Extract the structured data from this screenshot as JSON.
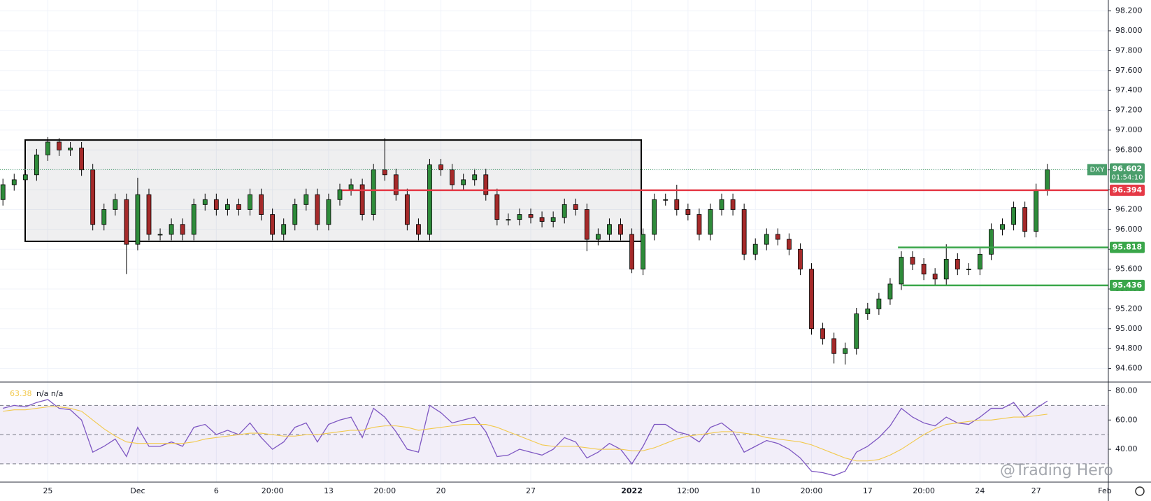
{
  "chart_data": [
    {
      "type": "candlestick",
      "symbol": "DXY",
      "categories": [
        null,
        null,
        null,
        null,
        "25",
        null,
        null,
        null,
        null,
        null,
        null,
        null,
        "Dec",
        null,
        null,
        null,
        null,
        null,
        null,
        "6",
        null,
        null,
        null,
        null,
        "20:00",
        null,
        null,
        null,
        null,
        "13",
        null,
        null,
        null,
        null,
        "20:00",
        null,
        null,
        null,
        null,
        "20",
        null,
        null,
        null,
        null,
        null,
        null,
        null,
        "27",
        null,
        null,
        null,
        null,
        null,
        null,
        null,
        null,
        "2022",
        null,
        null,
        null,
        null,
        "12:00",
        null,
        null,
        null,
        null,
        null,
        "10",
        null,
        null,
        null,
        null,
        "20:00",
        null,
        null,
        null,
        null,
        "17",
        null,
        null,
        null,
        null,
        "20:00",
        null,
        null,
        null,
        null,
        "24",
        null,
        null,
        null,
        null,
        "27",
        null
      ],
      "x_end_label": "Feb",
      "open": [
        96.3,
        96.45,
        96.5,
        96.55,
        96.75,
        96.88,
        96.8,
        96.82,
        96.6,
        96.05,
        96.2,
        96.3,
        95.85,
        96.35,
        95.95,
        95.95,
        96.05,
        95.95,
        96.25,
        96.3,
        96.2,
        96.25,
        96.2,
        96.35,
        96.15,
        95.95,
        96.05,
        96.25,
        96.35,
        96.05,
        96.3,
        96.4,
        96.45,
        96.15,
        96.6,
        96.55,
        96.35,
        96.05,
        95.95,
        96.65,
        96.6,
        96.45,
        96.5,
        96.55,
        96.35,
        96.1,
        96.1,
        96.15,
        96.12,
        96.08,
        96.12,
        96.25,
        96.2,
        95.9,
        95.95,
        96.05,
        95.95,
        95.6,
        95.95,
        96.3,
        96.3,
        96.2,
        96.15,
        95.95,
        96.2,
        96.3,
        96.2,
        95.75,
        95.85,
        95.95,
        95.9,
        95.8,
        95.6,
        95.0,
        94.9,
        94.75,
        94.8,
        95.15,
        95.2,
        95.3,
        95.45,
        95.72,
        95.65,
        95.55,
        95.5,
        95.7,
        95.6,
        95.6,
        95.75,
        96.0,
        96.05,
        96.22,
        95.98,
        96.4
      ],
      "high": [
        96.51,
        96.56,
        96.61,
        96.81,
        96.93,
        96.92,
        96.88,
        96.88,
        96.66,
        96.26,
        96.36,
        96.36,
        96.52,
        96.41,
        96.01,
        96.11,
        96.11,
        96.31,
        96.36,
        96.36,
        96.31,
        96.31,
        96.41,
        96.41,
        96.21,
        96.11,
        96.31,
        96.41,
        96.41,
        96.36,
        96.46,
        96.51,
        96.51,
        96.66,
        96.92,
        96.61,
        96.41,
        96.11,
        96.71,
        96.71,
        96.66,
        96.56,
        96.61,
        96.61,
        96.41,
        96.16,
        96.21,
        96.21,
        96.18,
        96.18,
        96.31,
        96.31,
        96.26,
        96.01,
        96.11,
        96.11,
        96.01,
        96.01,
        96.36,
        96.36,
        96.45,
        96.26,
        96.21,
        96.26,
        96.36,
        96.36,
        96.26,
        95.91,
        96.01,
        96.01,
        95.96,
        95.86,
        95.66,
        95.06,
        94.96,
        94.86,
        95.21,
        95.26,
        95.36,
        95.51,
        95.78,
        95.78,
        95.71,
        95.61,
        95.85,
        95.76,
        95.66,
        95.81,
        96.06,
        96.11,
        96.28,
        96.28,
        96.46,
        96.66
      ],
      "low": [
        96.24,
        96.39,
        96.44,
        96.49,
        96.69,
        96.74,
        96.74,
        96.54,
        95.99,
        95.99,
        96.14,
        95.55,
        95.79,
        95.89,
        95.89,
        95.89,
        95.89,
        95.89,
        96.19,
        96.14,
        96.14,
        96.14,
        96.14,
        96.09,
        95.89,
        95.89,
        95.99,
        96.19,
        95.99,
        95.99,
        96.24,
        96.34,
        96.09,
        96.09,
        96.49,
        96.29,
        95.99,
        95.89,
        95.89,
        96.54,
        96.39,
        96.39,
        96.44,
        96.29,
        96.04,
        96.04,
        96.04,
        96.06,
        96.02,
        96.02,
        96.06,
        96.14,
        95.78,
        95.84,
        95.89,
        95.89,
        95.56,
        95.54,
        95.89,
        96.24,
        96.14,
        96.09,
        95.89,
        95.89,
        96.14,
        96.14,
        95.69,
        95.69,
        95.79,
        95.84,
        95.74,
        95.54,
        94.94,
        94.84,
        94.65,
        94.64,
        94.74,
        95.09,
        95.14,
        95.24,
        95.39,
        95.59,
        95.49,
        95.44,
        95.44,
        95.54,
        95.54,
        95.54,
        95.69,
        95.94,
        95.99,
        95.92,
        95.92,
        96.34
      ],
      "close": [
        96.45,
        96.5,
        96.55,
        96.75,
        96.88,
        96.8,
        96.82,
        96.6,
        96.05,
        96.2,
        96.3,
        95.85,
        96.35,
        95.95,
        95.95,
        96.05,
        95.95,
        96.25,
        96.3,
        96.2,
        96.25,
        96.2,
        96.35,
        96.15,
        95.95,
        96.05,
        96.25,
        96.35,
        96.05,
        96.3,
        96.4,
        96.45,
        96.15,
        96.6,
        96.55,
        96.35,
        96.05,
        95.95,
        96.65,
        96.6,
        96.45,
        96.5,
        96.55,
        96.35,
        96.1,
        96.1,
        96.15,
        96.12,
        96.08,
        96.12,
        96.25,
        96.2,
        95.9,
        95.95,
        96.05,
        95.95,
        95.6,
        95.95,
        96.3,
        96.3,
        96.2,
        96.15,
        95.95,
        96.2,
        96.3,
        96.2,
        95.75,
        95.85,
        95.95,
        95.9,
        95.8,
        95.6,
        95.0,
        94.9,
        94.75,
        94.8,
        95.15,
        95.2,
        95.3,
        95.45,
        95.72,
        95.65,
        95.55,
        95.5,
        95.7,
        95.6,
        95.6,
        95.75,
        96.0,
        96.05,
        96.22,
        95.98,
        96.4,
        96.6
      ],
      "up_color": "#2e8b3a",
      "down_color": "#a52a2a",
      "ylim": [
        94.47,
        98.31
      ],
      "yticks": [
        {
          "value": 94.6,
          "label": "94.600"
        },
        {
          "value": 94.8,
          "label": "94.800"
        },
        {
          "value": 95.0,
          "label": "95.000"
        },
        {
          "value": 95.2,
          "label": "95.200"
        },
        {
          "value": 95.4,
          "label": "95.400"
        },
        {
          "value": 95.6,
          "label": "95.600"
        },
        {
          "value": 95.8,
          "label": "95.800"
        },
        {
          "value": 96.0,
          "label": "96.000"
        },
        {
          "value": 96.2,
          "label": "96.200"
        },
        {
          "value": 96.4,
          "label": "96.400"
        },
        {
          "value": 96.6,
          "label": "96.600"
        },
        {
          "value": 96.8,
          "label": "96.800"
        },
        {
          "value": 97.0,
          "label": "97.000"
        },
        {
          "value": 97.2,
          "label": "97.200"
        },
        {
          "value": 97.4,
          "label": "97.400"
        },
        {
          "value": 97.6,
          "label": "97.600"
        },
        {
          "value": 97.8,
          "label": "97.800"
        },
        {
          "value": 98.0,
          "label": "98.000"
        },
        {
          "value": 98.2,
          "label": "98.200"
        }
      ],
      "grid": true,
      "last_price": {
        "value": 96.602,
        "label": "96.602",
        "countdown": "01:54:10",
        "color": "#4a9e6b"
      },
      "levels": [
        {
          "value": 96.394,
          "label": "96.394",
          "color": "#e53946"
        },
        {
          "value": 95.818,
          "label": "95.818",
          "color": "#3aa64a"
        },
        {
          "value": 95.436,
          "label": "95.436",
          "color": "#3aa64a"
        }
      ],
      "box": {
        "top": 96.9,
        "bottom": 95.88
      },
      "watermark": "@Trading Hero"
    },
    {
      "type": "line",
      "series": [
        {
          "color": "#7e57c2",
          "values": [
            68,
            70,
            69,
            72,
            74,
            68,
            67,
            60,
            38,
            42,
            47,
            35,
            55,
            42,
            42,
            45,
            42,
            55,
            57,
            50,
            53,
            50,
            58,
            48,
            40,
            45,
            55,
            58,
            45,
            57,
            60,
            62,
            48,
            68,
            62,
            52,
            40,
            38,
            70,
            65,
            58,
            60,
            62,
            52,
            35,
            36,
            40,
            38,
            36,
            40,
            48,
            45,
            34,
            38,
            44,
            40,
            30,
            42,
            57,
            57,
            52,
            50,
            45,
            55,
            58,
            52,
            38,
            42,
            46,
            44,
            40,
            34,
            25,
            24,
            22,
            25,
            38,
            42,
            48,
            56,
            68,
            62,
            58,
            56,
            62,
            58,
            57,
            62,
            68,
            68,
            72,
            62,
            68,
            73
          ]
        },
        {
          "color": "#f2c94c",
          "value_label": "63.38",
          "values": [
            66,
            67,
            67,
            68,
            69,
            69,
            68,
            66,
            60,
            54,
            49,
            45,
            44,
            44,
            44,
            44,
            44,
            45,
            47,
            48,
            49,
            50,
            51,
            51,
            50,
            49,
            49,
            50,
            50,
            51,
            52,
            53,
            53,
            55,
            56,
            56,
            55,
            53,
            54,
            55,
            56,
            57,
            57,
            57,
            55,
            52,
            49,
            46,
            43,
            42,
            42,
            42,
            41,
            40,
            40,
            40,
            39,
            39,
            41,
            44,
            47,
            49,
            50,
            51,
            52,
            52,
            51,
            50,
            48,
            47,
            46,
            45,
            43,
            40,
            37,
            34,
            32,
            32,
            33,
            36,
            40,
            45,
            50,
            54,
            57,
            58,
            59,
            60,
            60,
            61,
            62,
            62,
            63,
            64
          ]
        }
      ],
      "annotation": "n/a n/a",
      "bands": [
        30,
        50,
        70
      ],
      "ylim": [
        18,
        85.5
      ],
      "yticks": [
        {
          "value": 40,
          "label": "40.00"
        },
        {
          "value": 60,
          "label": "60.00"
        },
        {
          "value": 80,
          "label": "80.00"
        }
      ]
    }
  ]
}
